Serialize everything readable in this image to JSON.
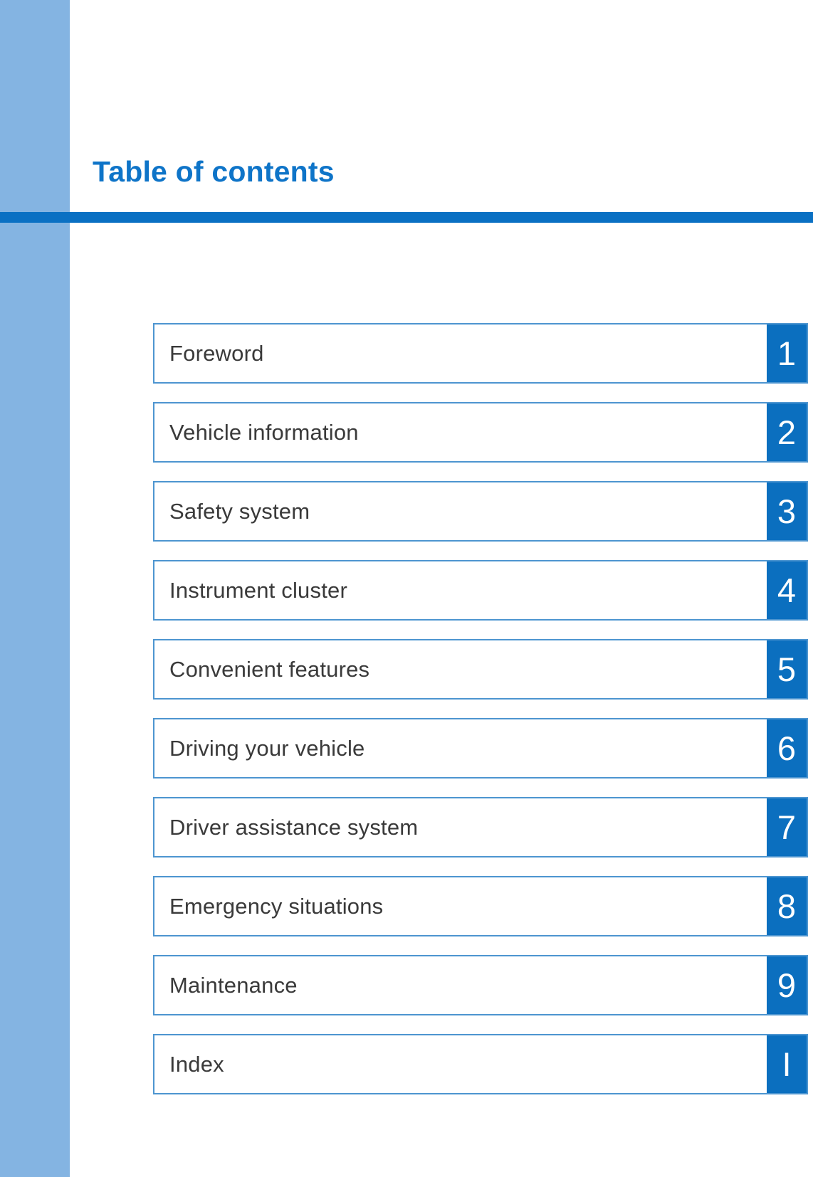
{
  "page_title": "Table of contents",
  "colors": {
    "sidebar": "#84b4e2",
    "title_text": "#0e74c8",
    "divider_bar": "#0a70c3",
    "row_border": "#4d95d0",
    "number_tile": "#0b6fbf",
    "label_text": "#3a3a3a"
  },
  "toc": {
    "items": [
      {
        "label": "Foreword",
        "number": "1"
      },
      {
        "label": "Vehicle information",
        "number": "2"
      },
      {
        "label": "Safety system",
        "number": "3"
      },
      {
        "label": "Instrument cluster",
        "number": "4"
      },
      {
        "label": "Convenient features",
        "number": "5"
      },
      {
        "label": "Driving your vehicle",
        "number": "6"
      },
      {
        "label": "Driver assistance system",
        "number": "7"
      },
      {
        "label": "Emergency situations",
        "number": "8"
      },
      {
        "label": "Maintenance",
        "number": "9"
      },
      {
        "label": "Index",
        "number": "I"
      }
    ]
  }
}
